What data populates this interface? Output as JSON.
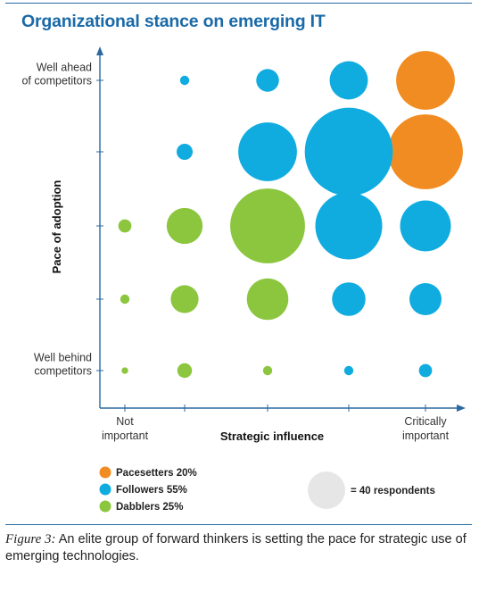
{
  "chart_data": {
    "type": "bubble",
    "title": "Organizational stance on emerging IT",
    "xlabel": "Strategic influence",
    "ylabel": "Pace of adoption",
    "x_levels": 5,
    "y_levels": 5,
    "x_tick_labels": [
      {
        "level": 1,
        "lines": [
          "Not",
          "important"
        ]
      },
      {
        "level": 5,
        "lines": [
          "Critically",
          "important"
        ]
      }
    ],
    "y_tick_labels": [
      {
        "level": 5,
        "lines": [
          "Well ahead",
          "of competitors"
        ]
      },
      {
        "level": 1,
        "lines": [
          "Well behind",
          "competitors"
        ]
      }
    ],
    "legend": {
      "placement": "bottom-left",
      "items": [
        {
          "name": "Pacesetters 20%",
          "color": "#f18c22"
        },
        {
          "name": "Followers 55%",
          "color": "#10ace0"
        },
        {
          "name": "Dabblers 25%",
          "color": "#8cc63f"
        }
      ],
      "scale_label": "= 40 respondents",
      "scale_value": 40,
      "scale_color": "#e6e6e6"
    },
    "series": [
      {
        "name": "Pacesetters",
        "color": "#f18c22",
        "points": [
          {
            "x": 5,
            "y": 5,
            "size": 40
          },
          {
            "x": 5,
            "y": 4,
            "size": 65
          }
        ]
      },
      {
        "name": "Followers",
        "color": "#10ace0",
        "points": [
          {
            "x": 2,
            "y": 5,
            "size": 1
          },
          {
            "x": 3,
            "y": 5,
            "size": 6
          },
          {
            "x": 4,
            "y": 5,
            "size": 17
          },
          {
            "x": 2,
            "y": 4,
            "size": 3
          },
          {
            "x": 3,
            "y": 4,
            "size": 40
          },
          {
            "x": 4,
            "y": 4,
            "size": 90
          },
          {
            "x": 4,
            "y": 3,
            "size": 52
          },
          {
            "x": 5,
            "y": 3,
            "size": 30
          },
          {
            "x": 4,
            "y": 2,
            "size": 13
          },
          {
            "x": 5,
            "y": 2,
            "size": 12
          },
          {
            "x": 4,
            "y": 1,
            "size": 1
          },
          {
            "x": 5,
            "y": 1,
            "size": 2
          }
        ]
      },
      {
        "name": "Dabblers",
        "color": "#8cc63f",
        "points": [
          {
            "x": 1,
            "y": 3,
            "size": 2
          },
          {
            "x": 2,
            "y": 3,
            "size": 15
          },
          {
            "x": 3,
            "y": 3,
            "size": 65
          },
          {
            "x": 1,
            "y": 2,
            "size": 1
          },
          {
            "x": 2,
            "y": 2,
            "size": 9
          },
          {
            "x": 3,
            "y": 2,
            "size": 20
          },
          {
            "x": 1,
            "y": 1,
            "size": 0.5
          },
          {
            "x": 2,
            "y": 1,
            "size": 2.5
          },
          {
            "x": 3,
            "y": 1,
            "size": 1
          }
        ]
      }
    ],
    "grid": false
  },
  "caption": {
    "figure_label": "Figure 3:",
    "text": " An elite group of forward thinkers is setting the pace for strategic use of emerging technologies."
  },
  "colors": {
    "title": "#1a6aa8",
    "axis": "#2a6aa1",
    "rule": "#2a6aa1"
  }
}
